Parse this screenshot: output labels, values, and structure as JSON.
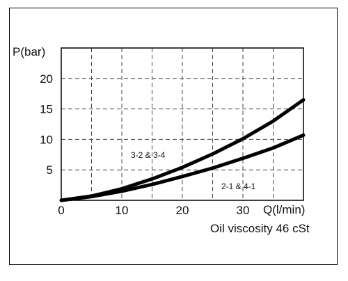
{
  "chart_data": {
    "type": "line",
    "ylabel": "P(bar)",
    "xlabel": "Q(l/min)",
    "note": "Oil viscosity 46 cSt",
    "xlim": [
      0,
      40
    ],
    "ylim": [
      0,
      25
    ],
    "x_ticks": [
      0,
      10,
      20,
      30
    ],
    "y_ticks": [
      5,
      10,
      15,
      20
    ],
    "x_grid": [
      0,
      5,
      10,
      15,
      20,
      25,
      30,
      35,
      40
    ],
    "y_grid": [
      0,
      5,
      10,
      15,
      20,
      25
    ],
    "grid": true,
    "series": [
      {
        "name": "3-2 & 3-4",
        "x": [
          0,
          5,
          10,
          15,
          20,
          25,
          30,
          35,
          40
        ],
        "y": [
          0,
          0.7,
          1.9,
          3.5,
          5.4,
          7.6,
          10.1,
          13.0,
          16.5
        ]
      },
      {
        "name": "2-1 & 4-1",
        "x": [
          0,
          5,
          10,
          15,
          20,
          25,
          30,
          35,
          40
        ],
        "y": [
          0,
          0.6,
          1.5,
          2.6,
          3.9,
          5.3,
          6.9,
          8.6,
          10.7
        ]
      }
    ]
  }
}
